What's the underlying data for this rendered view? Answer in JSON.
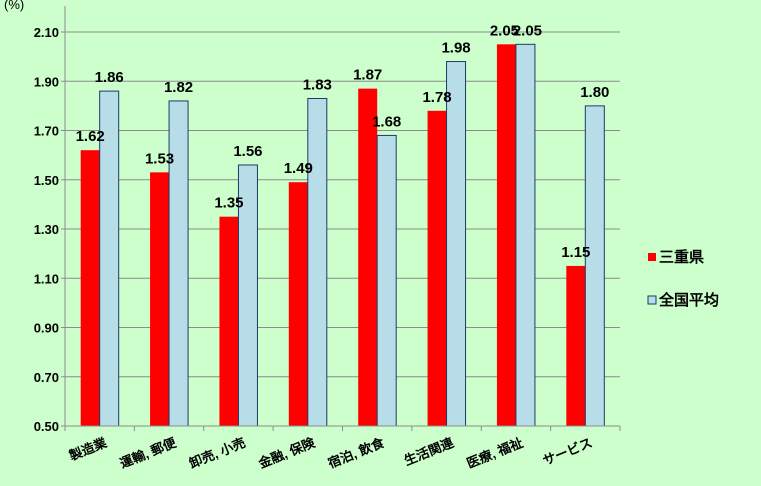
{
  "chart_data": {
    "type": "bar",
    "unit_label": "(%)",
    "categories": [
      "製造業",
      "運輸, 郵便",
      "卸売, 小売",
      "金融, 保険",
      "宿泊, 飲食",
      "生活関連",
      "医療, 福祉",
      "サービス"
    ],
    "series": [
      {
        "name": "三重県",
        "values": [
          1.62,
          1.53,
          1.35,
          1.49,
          1.87,
          1.78,
          2.05,
          1.15
        ],
        "color": "#ff0000"
      },
      {
        "name": "全国平均",
        "values": [
          1.86,
          1.82,
          1.56,
          1.83,
          1.68,
          1.98,
          2.05,
          1.8
        ],
        "color": "#b7dee8"
      }
    ],
    "y_ticks": [
      "0.50",
      "0.70",
      "0.90",
      "1.10",
      "1.30",
      "1.50",
      "1.70",
      "1.90",
      "2.10"
    ],
    "ylim": [
      0.5,
      2.1
    ],
    "grid": true,
    "legend_position": "right",
    "bar_outline_color": "#1f3864",
    "axis_color": "#8c8c8c"
  }
}
